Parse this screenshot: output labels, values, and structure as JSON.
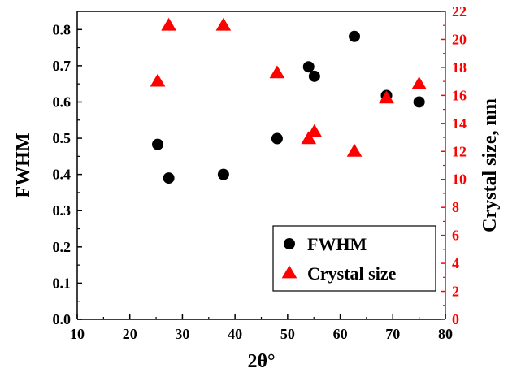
{
  "chart_data": {
    "type": "scatter",
    "x_axis": {
      "label": "2θ°",
      "range": [
        10,
        80
      ],
      "ticks": [
        "10",
        "20",
        "30",
        "40",
        "50",
        "60",
        "70",
        "80"
      ]
    },
    "y_left": {
      "label": "FWHM",
      "range": [
        0.0,
        0.85
      ],
      "ticks": [
        "0.0",
        "0.1",
        "0.2",
        "0.3",
        "0.4",
        "0.5",
        "0.6",
        "0.7",
        "0.8"
      ],
      "color": "#000000"
    },
    "y_right": {
      "label": "Crystal size, nm",
      "range": [
        0,
        22
      ],
      "ticks": [
        "0",
        "2",
        "4",
        "6",
        "8",
        "10",
        "12",
        "14",
        "16",
        "18",
        "20",
        "22"
      ],
      "color": "#ff0000"
    },
    "series": [
      {
        "name": "FWHM",
        "axis": "left",
        "marker": "circle",
        "color": "#000000",
        "points": [
          {
            "x": 25.3,
            "y": 0.483
          },
          {
            "x": 27.4,
            "y": 0.39
          },
          {
            "x": 37.8,
            "y": 0.4
          },
          {
            "x": 48.0,
            "y": 0.499
          },
          {
            "x": 54.0,
            "y": 0.697
          },
          {
            "x": 55.1,
            "y": 0.671
          },
          {
            "x": 62.7,
            "y": 0.781
          },
          {
            "x": 68.8,
            "y": 0.618
          },
          {
            "x": 75.0,
            "y": 0.6
          }
        ]
      },
      {
        "name": "Crystal size",
        "axis": "right",
        "marker": "triangle",
        "color": "#ff0000",
        "points": [
          {
            "x": 25.3,
            "y": 17.0
          },
          {
            "x": 27.4,
            "y": 21.0
          },
          {
            "x": 37.8,
            "y": 21.0
          },
          {
            "x": 48.0,
            "y": 17.6
          },
          {
            "x": 54.0,
            "y": 12.9
          },
          {
            "x": 55.1,
            "y": 13.4
          },
          {
            "x": 62.7,
            "y": 12.0
          },
          {
            "x": 68.8,
            "y": 15.8
          },
          {
            "x": 75.0,
            "y": 16.8
          }
        ]
      }
    ],
    "legend": {
      "placement": "bottom-right",
      "entries": [
        "FWHM",
        "Crystal size"
      ]
    },
    "grid": false
  }
}
